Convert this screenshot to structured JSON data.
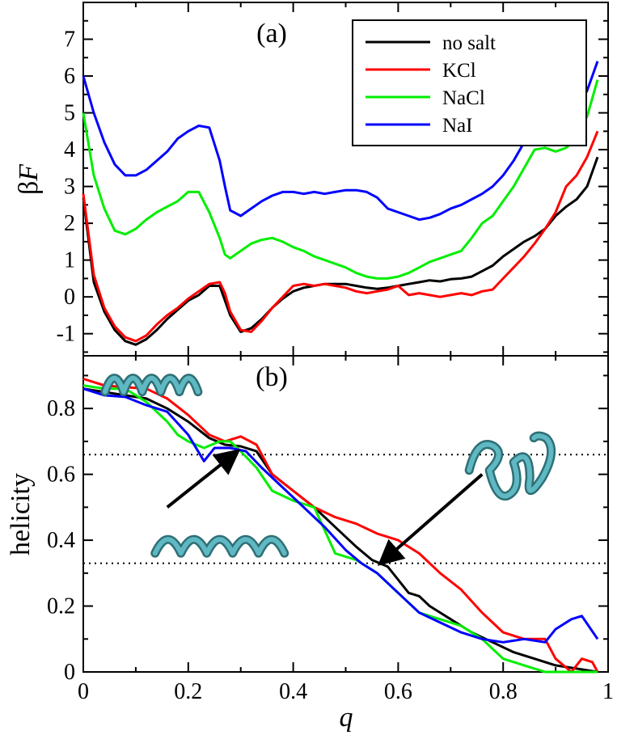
{
  "chart_data": [
    {
      "type": "line",
      "panel_label": "(a)",
      "ylabel_prefix": "β",
      "ylabel_var": "F",
      "xlabel": "",
      "xlim": [
        0,
        1
      ],
      "ylim": [
        -1.6,
        8
      ],
      "yticks": [
        -1,
        0,
        1,
        2,
        3,
        4,
        5,
        6,
        7
      ],
      "ytick_labels": [
        "-1",
        "0",
        "1",
        "2",
        "3",
        "4",
        "5",
        "6",
        "7"
      ],
      "legend_position": "top-right",
      "series": [
        {
          "name": "no salt",
          "color": "#000000",
          "x": [
            0,
            0.02,
            0.04,
            0.06,
            0.08,
            0.1,
            0.12,
            0.14,
            0.16,
            0.18,
            0.2,
            0.22,
            0.24,
            0.26,
            0.27,
            0.28,
            0.3,
            0.32,
            0.34,
            0.36,
            0.38,
            0.4,
            0.42,
            0.44,
            0.46,
            0.48,
            0.5,
            0.52,
            0.54,
            0.56,
            0.58,
            0.6,
            0.62,
            0.64,
            0.66,
            0.68,
            0.7,
            0.72,
            0.74,
            0.76,
            0.78,
            0.8,
            0.82,
            0.84,
            0.86,
            0.88,
            0.9,
            0.92,
            0.94,
            0.96,
            0.98
          ],
          "y": [
            2.7,
            0.4,
            -0.4,
            -0.9,
            -1.2,
            -1.3,
            -1.15,
            -0.9,
            -0.6,
            -0.35,
            -0.1,
            0.05,
            0.3,
            0.3,
            -0.1,
            -0.5,
            -0.95,
            -0.85,
            -0.6,
            -0.3,
            -0.05,
            0.15,
            0.25,
            0.3,
            0.35,
            0.35,
            0.35,
            0.3,
            0.25,
            0.22,
            0.25,
            0.3,
            0.35,
            0.4,
            0.45,
            0.42,
            0.48,
            0.5,
            0.55,
            0.7,
            0.85,
            1.1,
            1.3,
            1.5,
            1.65,
            1.85,
            2.2,
            2.45,
            2.65,
            3.0,
            3.8
          ]
        },
        {
          "name": "KCl",
          "color": "#ff0000",
          "x": [
            0,
            0.02,
            0.04,
            0.06,
            0.08,
            0.1,
            0.12,
            0.14,
            0.16,
            0.18,
            0.2,
            0.22,
            0.24,
            0.26,
            0.27,
            0.28,
            0.3,
            0.32,
            0.34,
            0.36,
            0.38,
            0.4,
            0.42,
            0.44,
            0.46,
            0.48,
            0.5,
            0.52,
            0.54,
            0.56,
            0.58,
            0.6,
            0.62,
            0.64,
            0.66,
            0.68,
            0.7,
            0.72,
            0.74,
            0.76,
            0.78,
            0.8,
            0.82,
            0.84,
            0.86,
            0.88,
            0.9,
            0.92,
            0.94,
            0.96,
            0.98
          ],
          "y": [
            2.8,
            0.6,
            -0.3,
            -0.8,
            -1.1,
            -1.2,
            -1.05,
            -0.75,
            -0.5,
            -0.3,
            -0.05,
            0.15,
            0.35,
            0.4,
            0.1,
            -0.4,
            -0.9,
            -0.95,
            -0.65,
            -0.3,
            0.0,
            0.3,
            0.35,
            0.3,
            0.35,
            0.3,
            0.25,
            0.15,
            0.1,
            0.15,
            0.2,
            0.3,
            0.05,
            0.1,
            0.05,
            0.0,
            0.05,
            0.1,
            0.05,
            0.15,
            0.2,
            0.5,
            0.8,
            1.1,
            1.45,
            1.85,
            2.3,
            3.0,
            3.3,
            3.8,
            4.5
          ]
        },
        {
          "name": "NaCl",
          "color": "#00ee00",
          "x": [
            0,
            0.02,
            0.04,
            0.06,
            0.08,
            0.1,
            0.12,
            0.14,
            0.16,
            0.18,
            0.2,
            0.22,
            0.24,
            0.26,
            0.27,
            0.28,
            0.3,
            0.32,
            0.34,
            0.36,
            0.38,
            0.4,
            0.42,
            0.44,
            0.46,
            0.48,
            0.5,
            0.52,
            0.54,
            0.56,
            0.58,
            0.6,
            0.62,
            0.64,
            0.66,
            0.68,
            0.7,
            0.72,
            0.74,
            0.76,
            0.78,
            0.8,
            0.82,
            0.84,
            0.86,
            0.88,
            0.9,
            0.92,
            0.94,
            0.96,
            0.98
          ],
          "y": [
            5.0,
            3.3,
            2.4,
            1.8,
            1.7,
            1.85,
            2.1,
            2.3,
            2.45,
            2.6,
            2.85,
            2.85,
            2.3,
            1.6,
            1.15,
            1.05,
            1.25,
            1.45,
            1.55,
            1.6,
            1.5,
            1.35,
            1.25,
            1.1,
            1.0,
            0.9,
            0.8,
            0.65,
            0.55,
            0.5,
            0.5,
            0.55,
            0.65,
            0.8,
            0.95,
            1.05,
            1.15,
            1.25,
            1.6,
            2.0,
            2.2,
            2.6,
            3.0,
            3.5,
            4.0,
            4.05,
            3.95,
            4.05,
            4.3,
            4.9,
            5.9
          ]
        },
        {
          "name": "NaI",
          "color": "#0000ff",
          "x": [
            0,
            0.02,
            0.04,
            0.06,
            0.08,
            0.1,
            0.12,
            0.14,
            0.16,
            0.18,
            0.2,
            0.22,
            0.24,
            0.26,
            0.27,
            0.28,
            0.3,
            0.32,
            0.34,
            0.36,
            0.38,
            0.4,
            0.42,
            0.44,
            0.46,
            0.48,
            0.5,
            0.52,
            0.54,
            0.56,
            0.58,
            0.6,
            0.62,
            0.64,
            0.66,
            0.68,
            0.7,
            0.72,
            0.74,
            0.76,
            0.78,
            0.8,
            0.82,
            0.84,
            0.86,
            0.88,
            0.9,
            0.92,
            0.94,
            0.96,
            0.98
          ],
          "y": [
            6.0,
            5.0,
            4.2,
            3.6,
            3.3,
            3.3,
            3.45,
            3.7,
            3.95,
            4.3,
            4.5,
            4.65,
            4.6,
            3.7,
            3.0,
            2.35,
            2.2,
            2.4,
            2.6,
            2.75,
            2.85,
            2.85,
            2.8,
            2.85,
            2.8,
            2.85,
            2.9,
            2.9,
            2.85,
            2.7,
            2.4,
            2.3,
            2.2,
            2.1,
            2.15,
            2.25,
            2.4,
            2.5,
            2.65,
            2.8,
            3.0,
            3.3,
            3.7,
            4.2,
            4.6,
            5.1,
            5.0,
            4.9,
            5.1,
            5.6,
            6.4
          ]
        }
      ]
    },
    {
      "type": "line",
      "panel_label": "(b)",
      "xlabel": "q",
      "ylabel": "helicity",
      "xlim": [
        0,
        1
      ],
      "ylim": [
        0,
        0.96
      ],
      "xticks": [
        0,
        0.2,
        0.4,
        0.6,
        0.8,
        1
      ],
      "xtick_labels": [
        "0",
        "0.2",
        "0.4",
        "0.6",
        "0.8",
        "1"
      ],
      "yticks": [
        0,
        0.2,
        0.4,
        0.6,
        0.8
      ],
      "ytick_labels": [
        "0",
        "0.2",
        "0.4",
        "0.6",
        "0.8"
      ],
      "reference_lines": [
        0.66,
        0.33
      ],
      "annotations": [
        {
          "type": "arrow",
          "from": [
            0.16,
            0.5
          ],
          "to": [
            0.29,
            0.665
          ]
        },
        {
          "type": "arrow",
          "from": [
            0.76,
            0.6
          ],
          "to": [
            0.57,
            0.335
          ]
        },
        {
          "type": "image",
          "name": "full helix",
          "at": [
            0.13,
            0.88
          ]
        },
        {
          "type": "image",
          "name": "partial helix",
          "at": [
            0.26,
            0.39
          ]
        },
        {
          "type": "image",
          "name": "hairpin",
          "at": [
            0.82,
            0.6
          ]
        }
      ],
      "series": [
        {
          "name": "no salt",
          "color": "#000000",
          "x": [
            0,
            0.04,
            0.08,
            0.12,
            0.16,
            0.2,
            0.24,
            0.27,
            0.3,
            0.33,
            0.36,
            0.4,
            0.44,
            0.48,
            0.52,
            0.55,
            0.58,
            0.6,
            0.62,
            0.64,
            0.66,
            0.7,
            0.74,
            0.78,
            0.82,
            0.86,
            0.9,
            0.94,
            0.98
          ],
          "y": [
            0.86,
            0.85,
            0.84,
            0.83,
            0.8,
            0.76,
            0.71,
            0.69,
            0.685,
            0.67,
            0.6,
            0.55,
            0.5,
            0.44,
            0.38,
            0.34,
            0.32,
            0.28,
            0.24,
            0.23,
            0.2,
            0.16,
            0.12,
            0.09,
            0.06,
            0.04,
            0.02,
            0.01,
            0.0
          ]
        },
        {
          "name": "KCl",
          "color": "#ff0000",
          "x": [
            0,
            0.04,
            0.08,
            0.12,
            0.16,
            0.2,
            0.24,
            0.27,
            0.3,
            0.33,
            0.36,
            0.4,
            0.44,
            0.48,
            0.52,
            0.56,
            0.6,
            0.64,
            0.68,
            0.72,
            0.76,
            0.8,
            0.84,
            0.88,
            0.9,
            0.93,
            0.95,
            0.97,
            0.98
          ],
          "y": [
            0.89,
            0.87,
            0.865,
            0.86,
            0.83,
            0.78,
            0.72,
            0.7,
            0.715,
            0.69,
            0.6,
            0.55,
            0.5,
            0.47,
            0.45,
            0.42,
            0.4,
            0.36,
            0.3,
            0.25,
            0.18,
            0.12,
            0.1,
            0.1,
            0.04,
            0.0,
            0.04,
            0.03,
            0.0
          ]
        },
        {
          "name": "NaCl",
          "color": "#00ee00",
          "x": [
            0,
            0.04,
            0.08,
            0.12,
            0.16,
            0.18,
            0.2,
            0.23,
            0.26,
            0.28,
            0.3,
            0.33,
            0.36,
            0.4,
            0.44,
            0.48,
            0.52,
            0.56,
            0.6,
            0.64,
            0.68,
            0.72,
            0.76,
            0.8,
            0.84,
            0.88,
            0.92,
            0.96,
            0.98
          ],
          "y": [
            0.87,
            0.86,
            0.86,
            0.82,
            0.76,
            0.72,
            0.7,
            0.68,
            0.7,
            0.7,
            0.67,
            0.62,
            0.55,
            0.52,
            0.5,
            0.36,
            0.34,
            0.3,
            0.24,
            0.18,
            0.16,
            0.14,
            0.1,
            0.04,
            0.02,
            0.0,
            0.0,
            0.0,
            0.0
          ]
        },
        {
          "name": "NaI",
          "color": "#0000ff",
          "x": [
            0,
            0.04,
            0.08,
            0.12,
            0.16,
            0.2,
            0.23,
            0.25,
            0.28,
            0.31,
            0.34,
            0.38,
            0.42,
            0.46,
            0.5,
            0.53,
            0.56,
            0.6,
            0.64,
            0.68,
            0.72,
            0.76,
            0.8,
            0.84,
            0.88,
            0.9,
            0.93,
            0.95,
            0.98
          ],
          "y": [
            0.86,
            0.84,
            0.835,
            0.81,
            0.79,
            0.72,
            0.64,
            0.68,
            0.68,
            0.67,
            0.62,
            0.56,
            0.5,
            0.44,
            0.37,
            0.33,
            0.3,
            0.24,
            0.18,
            0.15,
            0.12,
            0.1,
            0.09,
            0.1,
            0.09,
            0.13,
            0.16,
            0.17,
            0.1
          ]
        }
      ]
    }
  ]
}
